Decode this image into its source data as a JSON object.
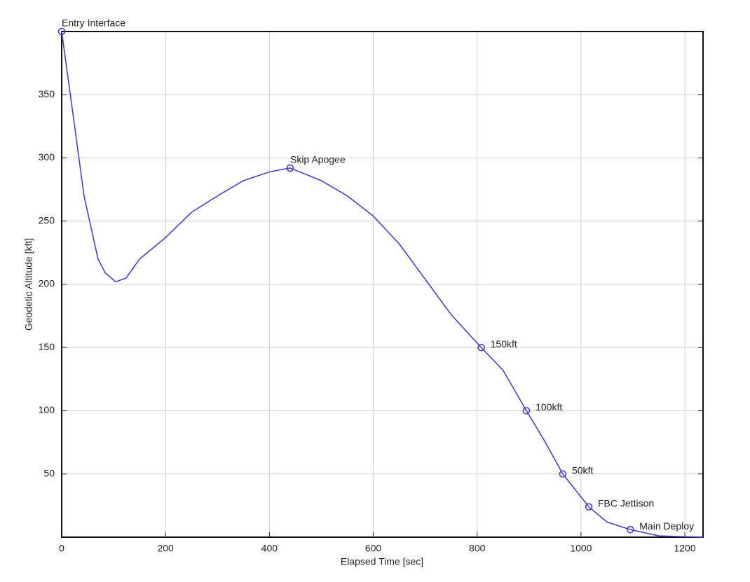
{
  "chart_data": {
    "type": "line",
    "x_label": "Elapsed Time [sec]",
    "y_label": "Geodetic Altitude [kft]",
    "x": [
      0,
      20,
      43,
      70,
      84,
      104,
      124,
      150,
      200,
      250,
      300,
      350,
      400,
      440,
      500,
      550,
      600,
      650,
      700,
      750,
      808,
      850,
      895,
      930,
      965,
      1015,
      1050,
      1095,
      1150,
      1235
    ],
    "series": [
      {
        "color": "#4a3fc8",
        "values": [
          400,
          340,
          270,
          220,
          209,
          202,
          205,
          220,
          237,
          257,
          270,
          282,
          289,
          292,
          282,
          270,
          254,
          232,
          204,
          176,
          150,
          132,
          100,
          76,
          50,
          24,
          12,
          6,
          1,
          0
        ]
      }
    ],
    "annotations": [
      {
        "x": 0,
        "y": 400,
        "label": "Entry Interface"
      },
      {
        "x": 440,
        "y": 292,
        "label": "Skip Apogee"
      },
      {
        "x": 808,
        "y": 150,
        "label": "150kft"
      },
      {
        "x": 895,
        "y": 100,
        "label": "100kft"
      },
      {
        "x": 965,
        "y": 50,
        "label": "50kft"
      },
      {
        "x": 1015,
        "y": 24,
        "label": "FBC Jettison"
      },
      {
        "x": 1095,
        "y": 6,
        "label": "Main Deploy"
      }
    ],
    "xlim": [
      0,
      1235
    ],
    "ylim": [
      0,
      400
    ],
    "xticks": [
      0,
      200,
      400,
      600,
      800,
      1000,
      1200
    ],
    "yticks": [
      50,
      100,
      150,
      200,
      250,
      300,
      350
    ],
    "grid": true
  }
}
